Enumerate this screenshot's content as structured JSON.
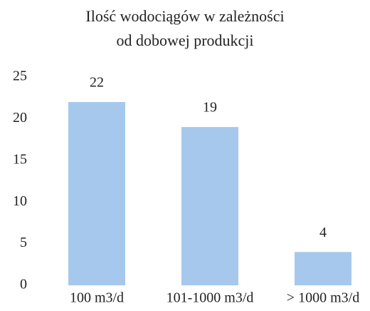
{
  "chart_data": {
    "type": "bar",
    "title": "Ilość wodociągów w zależności od dobowej produkcji",
    "categories": [
      "100 m3/d",
      "101-1000 m3/d",
      "> 1000 m3/d"
    ],
    "values": [
      22,
      19,
      4
    ],
    "color": "#a6c8ec",
    "ylim": [
      0,
      25
    ],
    "yticks": [
      0,
      5,
      10,
      15,
      20,
      25
    ],
    "grid": false
  }
}
